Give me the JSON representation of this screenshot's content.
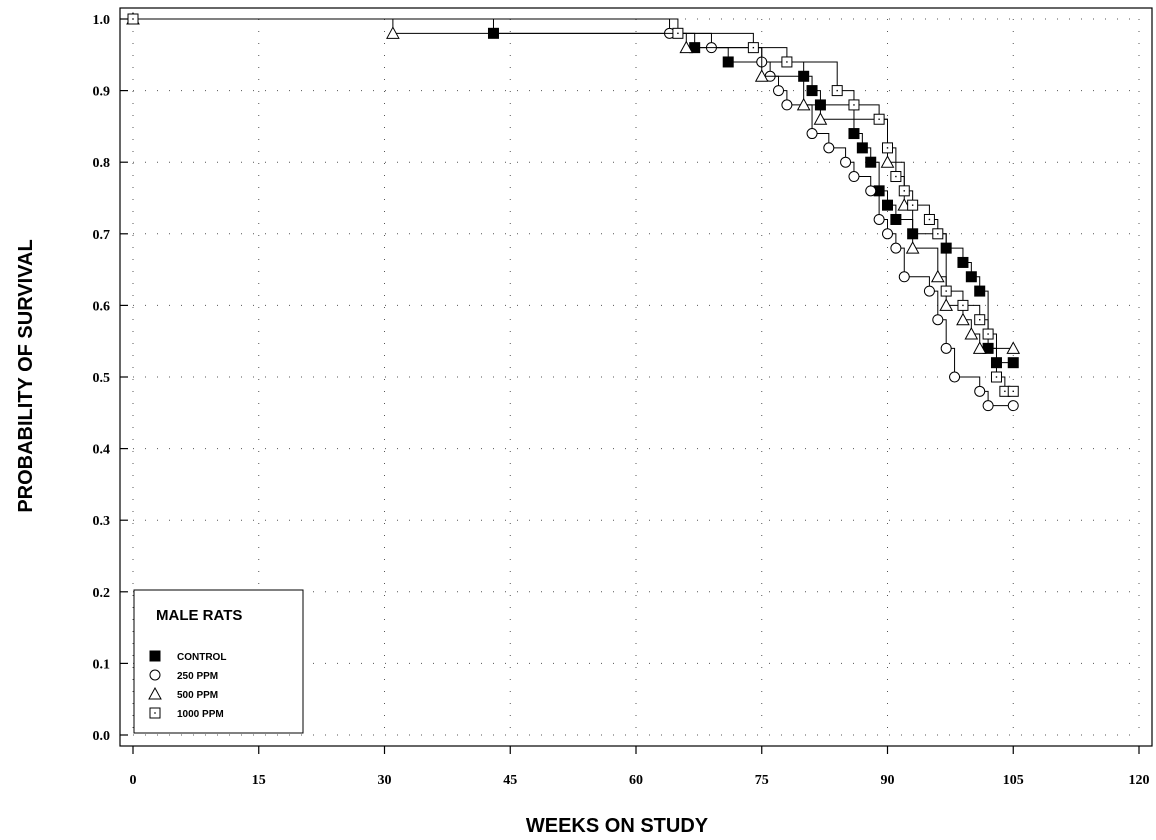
{
  "chart_data": {
    "type": "line",
    "xlabel": "WEEKS ON STUDY",
    "ylabel": "PROBABILITY OF SURVIVAL",
    "xlim": [
      0,
      120
    ],
    "ylim": [
      0.0,
      1.0
    ],
    "xticks": [
      "0",
      "15",
      "30",
      "45",
      "60",
      "75",
      "90",
      "105",
      "120"
    ],
    "yticks": [
      "0.0",
      "0.1",
      "0.2",
      "0.3",
      "0.4",
      "0.5",
      "0.6",
      "0.7",
      "0.8",
      "0.9",
      "1.0"
    ],
    "grid": "dotted",
    "legend": {
      "title": "MALE RATS",
      "placement": "bottom-left",
      "entries": [
        "CONTROL",
        "250 PPM",
        "500 PPM",
        "1000 PPM"
      ]
    },
    "series": [
      {
        "name": "CONTROL",
        "marker": "filled-square",
        "points": [
          [
            0,
            1.0
          ],
          [
            43,
            0.98
          ],
          [
            67,
            0.96
          ],
          [
            71,
            0.94
          ],
          [
            80,
            0.92
          ],
          [
            81,
            0.9
          ],
          [
            82,
            0.88
          ],
          [
            86,
            0.84
          ],
          [
            87,
            0.82
          ],
          [
            88,
            0.8
          ],
          [
            89,
            0.76
          ],
          [
            90,
            0.74
          ],
          [
            91,
            0.72
          ],
          [
            93,
            0.7
          ],
          [
            97,
            0.68
          ],
          [
            99,
            0.66
          ],
          [
            100,
            0.64
          ],
          [
            101,
            0.62
          ],
          [
            102,
            0.54
          ],
          [
            103,
            0.52
          ],
          [
            105,
            0.52
          ]
        ]
      },
      {
        "name": "250 PPM",
        "marker": "open-circle",
        "points": [
          [
            0,
            1.0
          ],
          [
            64,
            0.98
          ],
          [
            69,
            0.96
          ],
          [
            75,
            0.94
          ],
          [
            76,
            0.92
          ],
          [
            77,
            0.9
          ],
          [
            78,
            0.88
          ],
          [
            81,
            0.84
          ],
          [
            83,
            0.82
          ],
          [
            85,
            0.8
          ],
          [
            86,
            0.78
          ],
          [
            88,
            0.76
          ],
          [
            89,
            0.72
          ],
          [
            90,
            0.7
          ],
          [
            91,
            0.68
          ],
          [
            92,
            0.64
          ],
          [
            95,
            0.62
          ],
          [
            96,
            0.58
          ],
          [
            97,
            0.54
          ],
          [
            98,
            0.5
          ],
          [
            101,
            0.48
          ],
          [
            102,
            0.46
          ],
          [
            105,
            0.46
          ]
        ]
      },
      {
        "name": "500 PPM",
        "marker": "open-triangle",
        "points": [
          [
            0,
            1.0
          ],
          [
            31,
            0.98
          ],
          [
            66,
            0.96
          ],
          [
            75,
            0.92
          ],
          [
            80,
            0.88
          ],
          [
            82,
            0.86
          ],
          [
            90,
            0.8
          ],
          [
            92,
            0.74
          ],
          [
            93,
            0.68
          ],
          [
            96,
            0.64
          ],
          [
            97,
            0.6
          ],
          [
            99,
            0.58
          ],
          [
            100,
            0.56
          ],
          [
            101,
            0.54
          ],
          [
            105,
            0.54
          ]
        ]
      },
      {
        "name": "1000 PPM",
        "marker": "open-square-dot",
        "points": [
          [
            0,
            1.0
          ],
          [
            65,
            0.98
          ],
          [
            74,
            0.96
          ],
          [
            78,
            0.94
          ],
          [
            84,
            0.9
          ],
          [
            86,
            0.88
          ],
          [
            89,
            0.86
          ],
          [
            90,
            0.82
          ],
          [
            91,
            0.78
          ],
          [
            92,
            0.76
          ],
          [
            93,
            0.74
          ],
          [
            95,
            0.72
          ],
          [
            96,
            0.7
          ],
          [
            97,
            0.62
          ],
          [
            99,
            0.6
          ],
          [
            101,
            0.58
          ],
          [
            102,
            0.56
          ],
          [
            103,
            0.5
          ],
          [
            104,
            0.48
          ],
          [
            105,
            0.48
          ]
        ]
      }
    ]
  }
}
